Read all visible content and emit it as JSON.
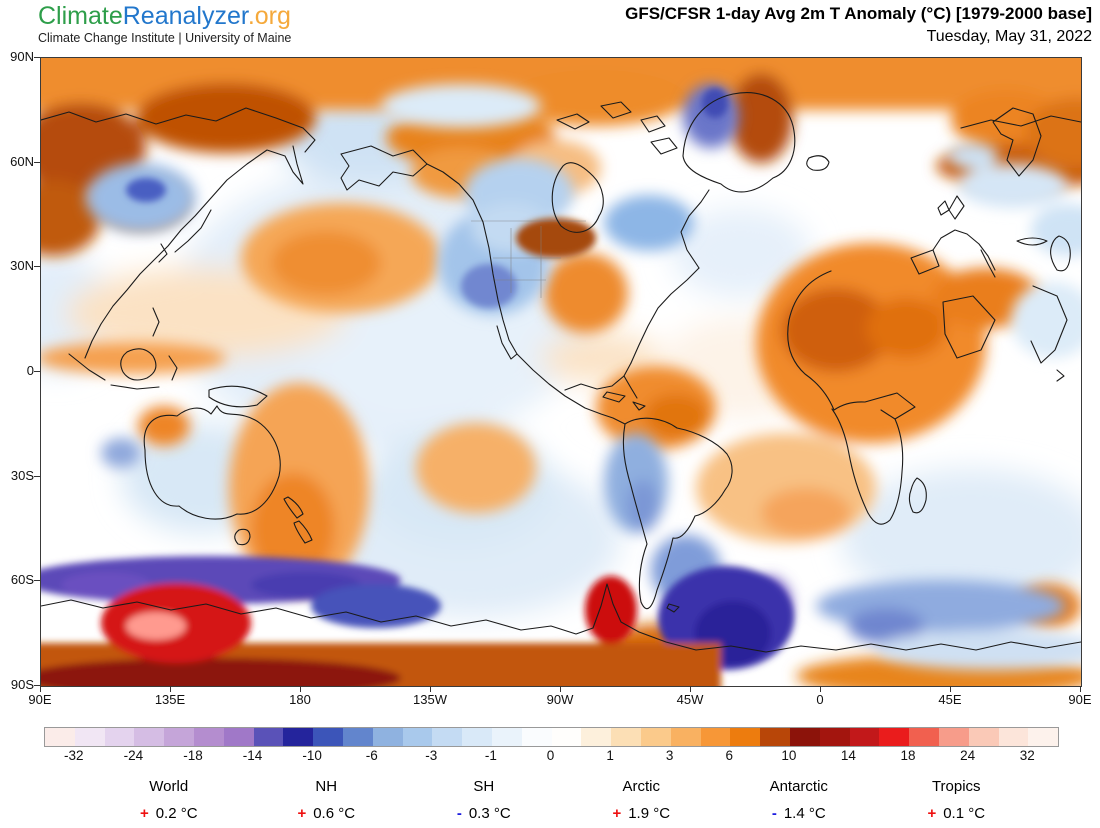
{
  "branding": {
    "logo_part1": "Climate",
    "logo_part2": "Reanalyzer",
    "logo_part3": ".org",
    "logo_colors": {
      "part1": "#2e9e4a",
      "part2": "#2277cc",
      "part3": "#f5a93b"
    },
    "subtitle": "Climate Change Institute | University of Maine"
  },
  "header": {
    "title": "GFS/CFSR 1-day Avg 2m T Anomaly (°C) [1979-2000 base]",
    "date": "Tuesday, May 31, 2022"
  },
  "map": {
    "lat_ticks": [
      "90N",
      "60N",
      "30N",
      "0",
      "30S",
      "60S",
      "90S"
    ],
    "lon_ticks": [
      "90E",
      "135E",
      "180",
      "135W",
      "90W",
      "45W",
      "0",
      "45E",
      "90E"
    ],
    "notable_anomalies": [
      "Warm band across Arctic and Siberia",
      "Cool anomaly over western/central North America",
      "Dark warm anomaly over Great Lakes and eastern US",
      "Strong warm anomaly over North Africa and Middle East",
      "Warm anomaly over Amazon Brazil and near New Zealand",
      "Deep cold band along Southern Ocean near 60S",
      "Intense warm (red) anomalies over West Antarctica and Antarctic Peninsula",
      "Deep purple cold anomaly over Weddell Sea"
    ]
  },
  "colorbar": {
    "tick_labels": [
      "-32",
      "-24",
      "-18",
      "-14",
      "-10",
      "-6",
      "-3",
      "-1",
      "0",
      "1",
      "3",
      "6",
      "10",
      "14",
      "18",
      "24",
      "32"
    ],
    "segment_colors": [
      "#fbece9",
      "#f1e6f4",
      "#e4d3ee",
      "#d5bde4",
      "#c5a5d9",
      "#b48dcf",
      "#a078c8",
      "#5a52b8",
      "#24249c",
      "#3c55b9",
      "#6285cd",
      "#8fb2e0",
      "#a9c9ec",
      "#c4dbf3",
      "#d9e9f8",
      "#eaf3fb",
      "#fafcfe",
      "#fffefc",
      "#fdf0dc",
      "#fcdfb5",
      "#fbca8b",
      "#f9b161",
      "#f79737",
      "#ed7c0e",
      "#b84608",
      "#8c130a",
      "#a3150e",
      "#c2181a",
      "#ea1c1c",
      "#f1604f",
      "#f79c8a",
      "#fac9b7",
      "#fce5da",
      "#fdf2ec"
    ]
  },
  "stats": {
    "plus_color": "#ee1111",
    "minus_color": "#1c1ce0",
    "regions": [
      {
        "name": "World",
        "sign": "+",
        "value": "0.2 °C"
      },
      {
        "name": "NH",
        "sign": "+",
        "value": "0.6 °C"
      },
      {
        "name": "SH",
        "sign": "-",
        "value": "0.3 °C"
      },
      {
        "name": "Arctic",
        "sign": "+",
        "value": "1.9 °C"
      },
      {
        "name": "Antarctic",
        "sign": "-",
        "value": "1.4 °C"
      },
      {
        "name": "Tropics",
        "sign": "+",
        "value": "0.1 °C"
      }
    ]
  }
}
